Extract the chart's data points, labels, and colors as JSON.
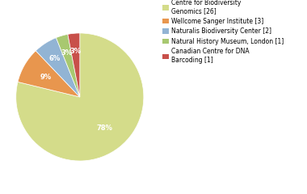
{
  "labels": [
    "Centre for Biodiversity\nGenomics [26]",
    "Wellcome Sanger Institute [3]",
    "Naturalis Biodiversity Center [2]",
    "Natural History Museum, London [1]",
    "Canadian Centre for DNA\nBarcoding [1]"
  ],
  "values": [
    26,
    3,
    2,
    1,
    1
  ],
  "colors": [
    "#d4dc8a",
    "#e8964e",
    "#92b4d4",
    "#a8c870",
    "#c8504a"
  ],
  "pct_labels": [
    "78%",
    "9%",
    "6%",
    "3%",
    "3%"
  ],
  "background_color": "#ffffff"
}
